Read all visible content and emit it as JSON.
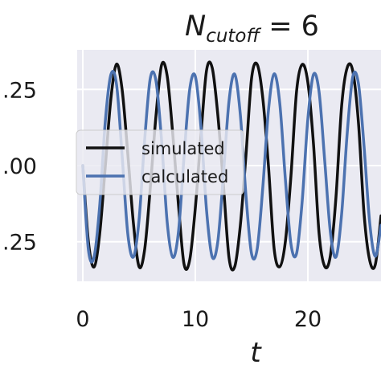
{
  "chart_data": {
    "type": "line",
    "title": {
      "main": "N",
      "subscript": "cutoff",
      "rest": " = 6"
    },
    "xlabel": "t",
    "ylabel": "",
    "xlim": [
      -0.5,
      26.5
    ],
    "ylim": [
      -0.38,
      0.38
    ],
    "x_ticks": [
      {
        "value": 0,
        "label": "0"
      },
      {
        "value": 10,
        "label": "10"
      },
      {
        "value": 20,
        "label": "20"
      }
    ],
    "y_ticks": [
      {
        "value": 0.25,
        "label": ".25"
      },
      {
        "value": 0.0,
        "label": ".00"
      },
      {
        "value": -0.25,
        "label": ".25"
      }
    ],
    "grid": true,
    "legend_position": "center-left",
    "background_color": "#eaeaf2",
    "series": [
      {
        "name": "simulated",
        "color": "#111111",
        "x": [
          0.0,
          0.5,
          1.0,
          1.5,
          2.0,
          2.5,
          3.0,
          3.5,
          4.0,
          4.5,
          5.0,
          5.5,
          6.0,
          6.5,
          7.0,
          7.5,
          8.0,
          8.5,
          9.0,
          9.5,
          10.0,
          10.5,
          11.0,
          11.5,
          12.0,
          12.5,
          13.0,
          13.5,
          14.0,
          14.5,
          15.0,
          15.5,
          16.0,
          16.5,
          17.0,
          17.5,
          18.0,
          18.5,
          19.0,
          19.5,
          20.0,
          20.5,
          21.0,
          21.5,
          22.0,
          22.5,
          23.0,
          23.5,
          24.0,
          24.5,
          25.0,
          25.5,
          26.0,
          26.5
        ],
        "y": [
          0.0,
          -0.25,
          -0.333,
          -0.225,
          -0.003,
          0.221,
          0.333,
          0.248,
          0.038,
          -0.19,
          -0.332,
          -0.275,
          -0.072,
          0.162,
          0.33,
          0.294,
          0.102,
          -0.129,
          -0.324,
          -0.31,
          -0.139,
          0.099,
          0.313,
          0.321,
          0.166,
          -0.064,
          -0.304,
          -0.332,
          -0.196,
          0.034,
          0.287,
          0.332,
          0.22,
          -0.002,
          -0.272,
          -0.332,
          -0.25,
          -0.033,
          0.245,
          0.332,
          0.273,
          0.071,
          -0.224,
          -0.331,
          -0.296,
          -0.103,
          0.195,
          0.322,
          0.309,
          0.139,
          -0.161,
          -0.312,
          -0.324,
          -0.165
        ]
      },
      {
        "name": "calculated",
        "color": "#4c72b0",
        "x": [
          0.0,
          0.5,
          1.0,
          1.5,
          2.0,
          2.5,
          3.0,
          3.5,
          4.0,
          4.5,
          5.0,
          5.5,
          6.0,
          6.5,
          7.0,
          7.5,
          8.0,
          8.5,
          9.0,
          9.5,
          10.0,
          10.5,
          11.0,
          11.5,
          12.0,
          12.5,
          13.0,
          13.5,
          14.0,
          14.5,
          15.0,
          15.5,
          16.0,
          16.5,
          17.0,
          17.5,
          18.0,
          18.5,
          19.0,
          19.5,
          20.0,
          20.5,
          21.0,
          21.5,
          22.0,
          22.5,
          23.0,
          23.5,
          24.0,
          24.5,
          25.0,
          25.5,
          26.0,
          26.5
        ],
        "y": [
          0.0,
          -0.277,
          -0.3,
          -0.133,
          0.145,
          0.299,
          0.266,
          0.03,
          -0.224,
          -0.3,
          -0.178,
          0.085,
          0.287,
          0.279,
          0.083,
          -0.186,
          -0.301,
          -0.218,
          0.031,
          0.25,
          0.293,
          0.126,
          -0.148,
          -0.3,
          -0.249,
          -0.028,
          0.214,
          0.3,
          0.167,
          -0.098,
          -0.29,
          -0.273,
          -0.07,
          0.182,
          0.301,
          0.206,
          -0.044,
          -0.258,
          -0.288,
          -0.115,
          0.153,
          0.299,
          0.241,
          0.015,
          -0.218,
          -0.3,
          -0.16,
          0.108,
          0.293,
          0.268,
          0.06,
          -0.189,
          -0.298,
          -0.196
        ]
      }
    ]
  }
}
